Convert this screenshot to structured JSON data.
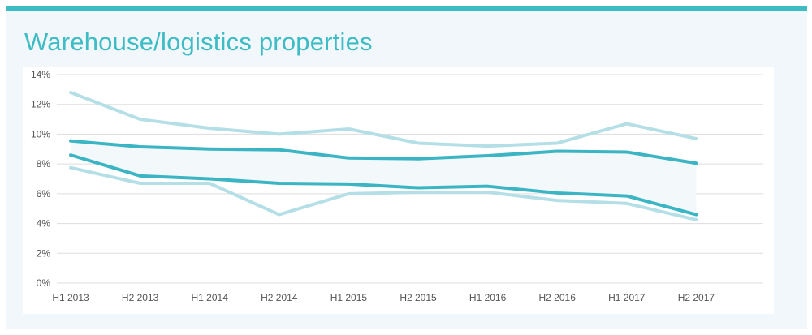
{
  "title": "Warehouse/logistics properties",
  "colors": {
    "accent": "#3dbcc6",
    "dark_line": "#3bb5c3",
    "light_line": "#b5dfe6",
    "band_fill": "#f3f9fb",
    "panel_bg": "#f1f7fa",
    "grid": "#dddddd"
  },
  "chart_data": {
    "type": "line",
    "title": "Warehouse/logistics properties",
    "xlabel": "",
    "ylabel": "",
    "categories": [
      "H1 2013",
      "H2 2013",
      "H1 2014",
      "H2 2014",
      "H1 2015",
      "H2 2015",
      "H1 2016",
      "H2 2016",
      "H1 2017",
      "H2 2017"
    ],
    "ylim": [
      0,
      14
    ],
    "yticks": [
      0,
      2,
      4,
      6,
      8,
      10,
      12,
      14
    ],
    "ytick_labels": [
      "0%",
      "2%",
      "4%",
      "6%",
      "8%",
      "10%",
      "12%",
      "14%"
    ],
    "grid": true,
    "legend": "none",
    "series": [
      {
        "style": "light",
        "values": [
          12.8,
          11.0,
          10.4,
          10.0,
          10.35,
          9.4,
          9.2,
          9.4,
          10.7,
          9.7
        ]
      },
      {
        "style": "dark",
        "values": [
          9.55,
          9.15,
          9.0,
          8.95,
          8.4,
          8.35,
          8.55,
          8.85,
          8.8,
          8.05
        ]
      },
      {
        "style": "dark",
        "values": [
          8.6,
          7.2,
          7.0,
          6.7,
          6.65,
          6.4,
          6.5,
          6.05,
          5.85,
          4.6
        ]
      },
      {
        "style": "light",
        "values": [
          7.75,
          6.7,
          6.7,
          4.6,
          6.0,
          6.1,
          6.1,
          5.55,
          5.35,
          4.25
        ]
      }
    ],
    "band": {
      "between_series": [
        1,
        2
      ]
    }
  }
}
